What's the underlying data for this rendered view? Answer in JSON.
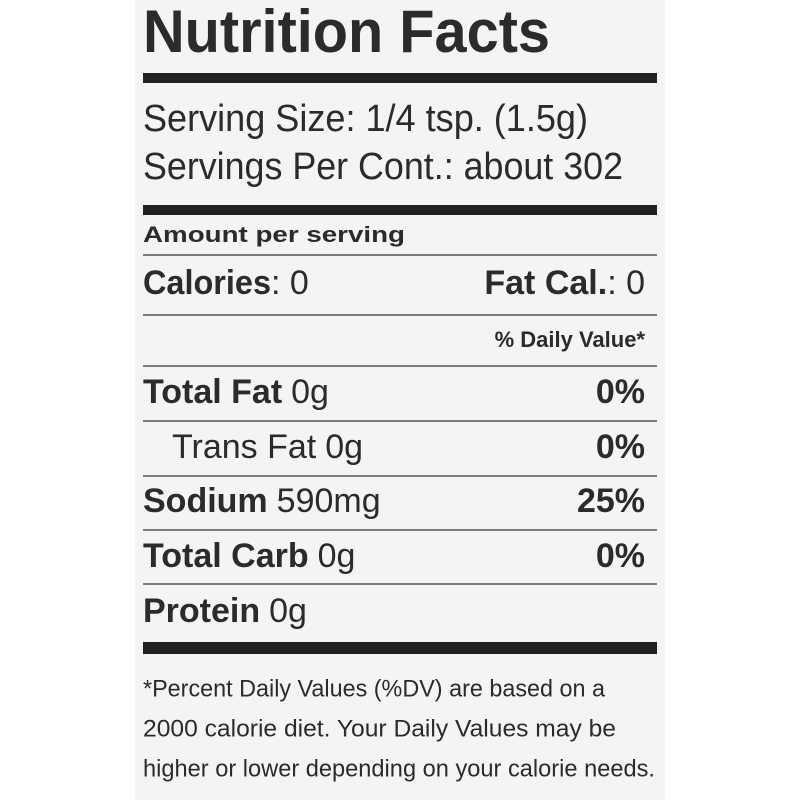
{
  "title": "Nutrition Facts",
  "serving": {
    "size": "Serving Size: 1/4 tsp. (1.5g)",
    "per_container": "Servings Per Cont.: about 302"
  },
  "amount_per_serving": "Amount per serving",
  "calories": {
    "label": "Calories",
    "value": ": 0"
  },
  "fat_calories": {
    "label": "Fat Cal.",
    "value": ": 0"
  },
  "daily_value_header": "% Daily Value*",
  "nutrients": [
    {
      "name": "Total Fat",
      "amount": "0g",
      "dv": "0%"
    },
    {
      "name": "Trans Fat",
      "amount": "0g",
      "dv": "0%"
    },
    {
      "name": "Sodium",
      "amount": "590mg",
      "dv": "25%"
    },
    {
      "name": "Total Carb",
      "amount": "0g",
      "dv": "0%"
    },
    {
      "name": "Protein",
      "amount": "0g"
    }
  ],
  "footnote": [
    "*Percent Daily Values (%DV) are based on a",
    "2000 calorie diet. Your Daily Values may be",
    "higher or lower depending on your calorie needs."
  ]
}
